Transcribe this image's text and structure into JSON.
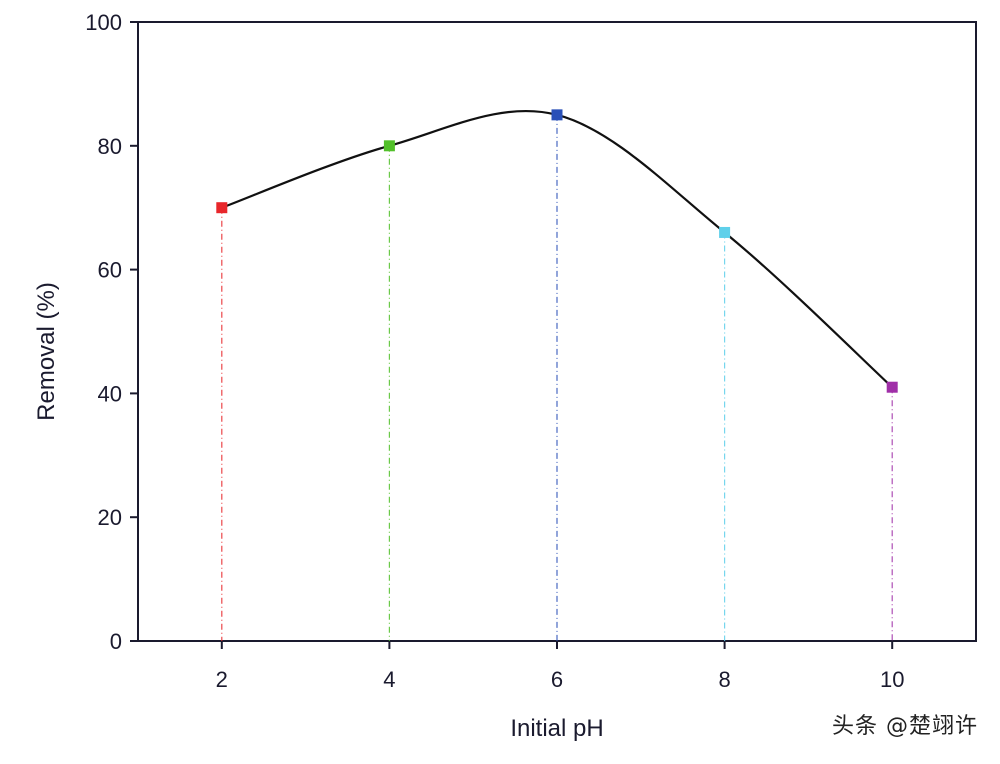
{
  "chart_data": {
    "type": "line",
    "xlabel": "Initial pH",
    "ylabel": "Removal (%)",
    "xlim": [
      1,
      11
    ],
    "ylim": [
      0,
      100
    ],
    "x_ticks": [
      2,
      4,
      6,
      8,
      10
    ],
    "y_ticks": [
      0,
      20,
      40,
      60,
      80,
      100
    ],
    "grid": false,
    "legend": "none",
    "smooth_line_color": "#111111",
    "points": [
      {
        "x": 2,
        "y": 70,
        "color": "#e8262b"
      },
      {
        "x": 4,
        "y": 80,
        "color": "#52c02a"
      },
      {
        "x": 6,
        "y": 85,
        "color": "#2a50b8"
      },
      {
        "x": 8,
        "y": 66,
        "color": "#5fd0ea"
      },
      {
        "x": 10,
        "y": 41,
        "color": "#a02fa8"
      }
    ]
  },
  "watermark": "头条 @楚翊许"
}
